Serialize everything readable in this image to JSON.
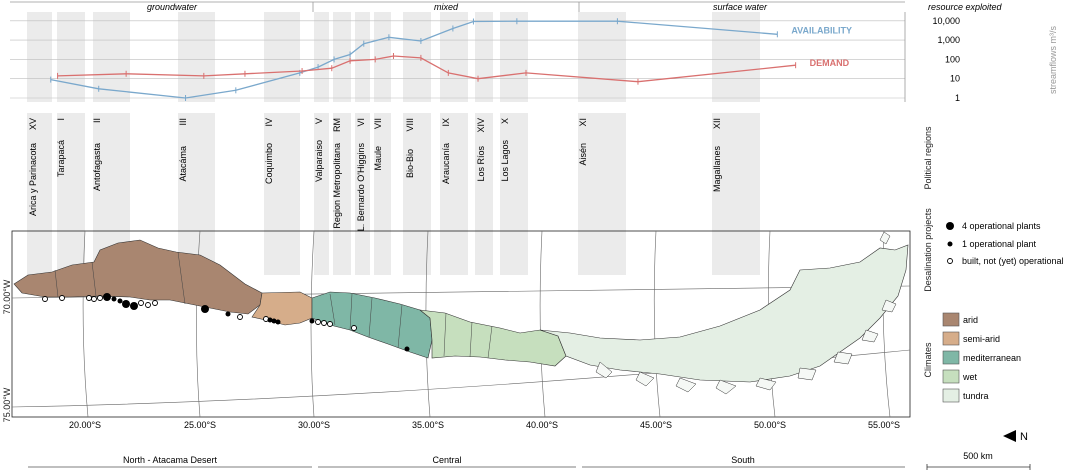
{
  "resource": {
    "groundwater_label": "groundwater",
    "mixed_label": "mixed",
    "surface_label": "surface water",
    "exploited_label": "resource exploited"
  },
  "chart_data": {
    "type": "line",
    "yscale": "log",
    "ylabel": "streamflows m³/s",
    "ytick_labels": [
      "10,000",
      "1,000",
      "100",
      "10",
      "1"
    ],
    "yticks": [
      10000,
      1000,
      100,
      10,
      1
    ],
    "series": [
      {
        "name": "AVAILABILITY",
        "color": "#7aa8cc",
        "x": [
          18.5,
          20.6,
          24.4,
          26.6,
          29.4,
          30.2,
          30.9,
          31.6,
          32.2,
          33.3,
          34.7,
          36.1,
          37.0,
          38.9,
          43.3,
          50.3
        ],
        "y": [
          9,
          3,
          1,
          2.5,
          20,
          40,
          100,
          180,
          650,
          1400,
          900,
          4000,
          9200,
          9500,
          9500,
          2000
        ]
      },
      {
        "name": "DEMAND",
        "color": "#d9706f",
        "x": [
          18.8,
          21.8,
          25.2,
          27.0,
          29.5,
          30.8,
          31.6,
          32.7,
          33.5,
          34.7,
          35.9,
          37.2,
          39.3,
          44.2,
          51.1
        ],
        "y": [
          14,
          18,
          14,
          18,
          25,
          35,
          85,
          100,
          150,
          120,
          20,
          10,
          20,
          7,
          50
        ]
      }
    ]
  },
  "regions": {
    "title": "Political regions",
    "items": [
      {
        "name": "Arica y Parinacota",
        "num": "XV"
      },
      {
        "name": "Tarapacá",
        "num": "I"
      },
      {
        "name": "Antofagasta",
        "num": "II"
      },
      {
        "name": "Atacáma",
        "num": "III"
      },
      {
        "name": "Coquimbo",
        "num": "IV"
      },
      {
        "name": "Valparaiso",
        "num": "V"
      },
      {
        "name": "Region Metropolitana",
        "num": "RM"
      },
      {
        "name": "L. Bernardo O'Higgins",
        "num": "VI"
      },
      {
        "name": "Maule",
        "num": "VII"
      },
      {
        "name": "Bio-Bio",
        "num": "VIII"
      },
      {
        "name": "Araucanía",
        "num": "IX"
      },
      {
        "name": "Los Ríos",
        "num": "XIV"
      },
      {
        "name": "Los Lagos",
        "num": "X"
      },
      {
        "name": "Aisén",
        "num": "XI"
      },
      {
        "name": "Magallanes",
        "num": "XII"
      }
    ]
  },
  "desalination": {
    "title": "Desalination projects",
    "legend": [
      "4 operational plants",
      "1 operational plant",
      "built, not (yet) operational"
    ]
  },
  "climates": {
    "title": "Climates",
    "items": [
      {
        "label": "arid",
        "color": "#a98670"
      },
      {
        "label": "semi-arid",
        "color": "#d6ad8a"
      },
      {
        "label": "mediterranean",
        "color": "#7fb7a6"
      },
      {
        "label": "wet",
        "color": "#c6dfbe"
      },
      {
        "label": "tundra",
        "color": "#e4efe4"
      }
    ]
  },
  "map": {
    "lat_labels": [
      "70.00°W",
      "75.00°W"
    ],
    "lon_labels": [
      "20.00°S",
      "25.00°S",
      "30.00°S",
      "35.00°S",
      "40.00°S",
      "45.00°S",
      "50.00°S",
      "55.00°S"
    ],
    "north_label": "N",
    "scale_label": "500 km"
  },
  "zones": [
    "North - Atacama Desert",
    "Central",
    "South"
  ]
}
